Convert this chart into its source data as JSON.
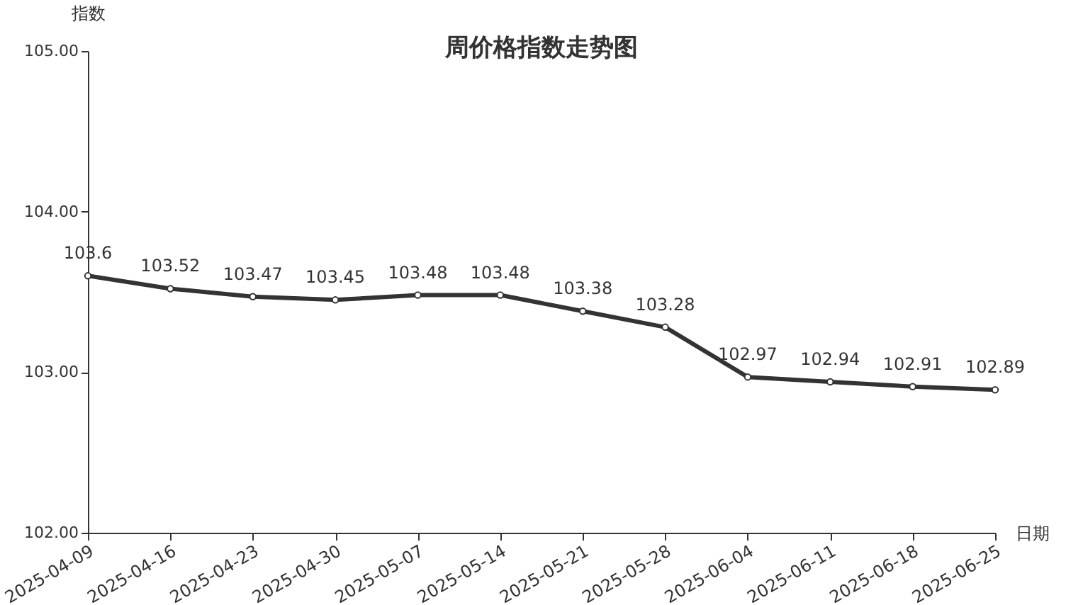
{
  "chart_data": {
    "type": "line",
    "title": "周价格指数走势图",
    "xlabel": "日期",
    "ylabel": "指数",
    "categories": [
      "2025-04-09",
      "2025-04-16",
      "2025-04-23",
      "2025-04-30",
      "2025-05-07",
      "2025-05-14",
      "2025-05-21",
      "2025-05-28",
      "2025-06-04",
      "2025-06-11",
      "2025-06-18",
      "2025-06-25"
    ],
    "values": [
      103.6,
      103.52,
      103.47,
      103.45,
      103.48,
      103.48,
      103.38,
      103.28,
      102.97,
      102.94,
      102.91,
      102.89
    ],
    "color": "#333333",
    "marker": "circle",
    "line_style": "solid",
    "data_labels": true,
    "grid": false,
    "ylim": [
      102,
      105
    ],
    "yticks": [
      {
        "value": 102,
        "label": "102.00"
      },
      {
        "value": 103,
        "label": "103.00"
      },
      {
        "value": 104,
        "label": "104.00"
      },
      {
        "value": 105,
        "label": "105.00"
      }
    ]
  }
}
